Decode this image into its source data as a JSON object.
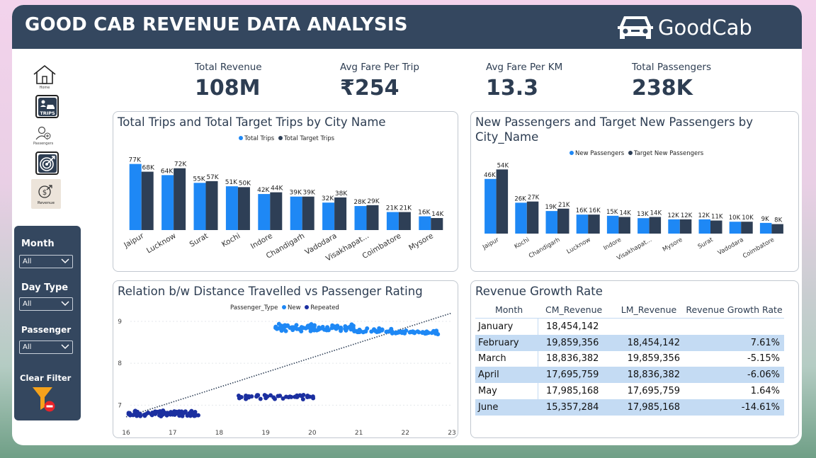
{
  "header": {
    "title": "GOOD CAB REVENUE DATA ANALYSIS",
    "logo_text": "GoodCab"
  },
  "nav": [
    {
      "label": "Home",
      "icon": "home-icon"
    },
    {
      "label": "TRIPS",
      "icon": "trips-icon"
    },
    {
      "label": "Passengers",
      "icon": "passengers-icon"
    },
    {
      "label": "",
      "icon": "target-icon"
    },
    {
      "label": "Revenue",
      "icon": "revenue-icon"
    }
  ],
  "filters": {
    "month": {
      "label": "Month",
      "value": "All"
    },
    "day_type": {
      "label": "Day Type",
      "value": "All"
    },
    "passenger": {
      "label": "Passenger",
      "value": "All"
    },
    "clear_label": "Clear Filter"
  },
  "kpis": [
    {
      "label": "Total Revenue",
      "value": "108M"
    },
    {
      "label": "Avg Fare Per Trip",
      "value": "₹254"
    },
    {
      "label": "Avg Fare Per KM",
      "value": "13.3"
    },
    {
      "label": "Total Passengers",
      "value": "238K"
    }
  ],
  "colors": {
    "primary": "#1e88f5",
    "secondary": "#2e3f56",
    "header": "#34475f",
    "scatter_new": "#1e88f5",
    "scatter_repeated": "#1b2fa0",
    "band": "#c4dbf3"
  },
  "chart_data": [
    {
      "type": "bar",
      "title": "Total Trips and Total Target Trips by City Name",
      "categories": [
        "Jaipur",
        "Lucknow",
        "Surat",
        "Kochi",
        "Indore",
        "Chandigarh",
        "Vadodara",
        "Visakhapat...",
        "Coimbatore",
        "Mysore"
      ],
      "series": [
        {
          "name": "Total Trips",
          "values": [
            77,
            64,
            55,
            51,
            42,
            39,
            32,
            28,
            21,
            16
          ],
          "labels": [
            "77K",
            "64K",
            "55K",
            "51K",
            "42K",
            "39K",
            "32K",
            "28K",
            "21K",
            "16K"
          ]
        },
        {
          "name": "Total Target Trips",
          "values": [
            68,
            72,
            57,
            50,
            44,
            39,
            38,
            29,
            21,
            14
          ],
          "labels": [
            "68K",
            "72K",
            "57K",
            "50K",
            "44K",
            "39K",
            "38K",
            "29K",
            "21K",
            "14K"
          ]
        }
      ],
      "ylim": [
        0,
        80
      ],
      "legend": "top-center"
    },
    {
      "type": "bar",
      "title": "New Passengers and Target New Passengers by City_Name",
      "categories": [
        "Jaipur",
        "Kochi",
        "Chandigarh",
        "Lucknow",
        "Indore",
        "Visakhapat...",
        "Mysore",
        "Surat",
        "Vadodara",
        "Coimbatore"
      ],
      "series": [
        {
          "name": "New Passengers",
          "values": [
            46,
            26,
            19,
            16,
            15,
            13,
            12,
            12,
            10,
            9
          ],
          "labels": [
            "46K",
            "26K",
            "19K",
            "16K",
            "15K",
            "13K",
            "12K",
            "12K",
            "10K",
            "9K"
          ]
        },
        {
          "name": "Target New Passengers",
          "values": [
            54,
            27,
            21,
            16,
            14,
            14,
            12,
            11,
            10,
            8
          ],
          "labels": [
            "54K",
            "27K",
            "21K",
            "16K",
            "14K",
            "14K",
            "12K",
            "11K",
            "10K",
            "8K"
          ]
        }
      ],
      "ylim": [
        0,
        56
      ],
      "legend": "top-center"
    },
    {
      "type": "scatter",
      "title": "Relation b/w Distance Travelled vs Passenger Rating",
      "legend_title": "Passenger_Type",
      "series": [
        {
          "name": "New",
          "clusters": [
            {
              "x_range": [
                19.2,
                20.9
              ],
              "y_center": 8.85,
              "y_spread": 0.06,
              "count": 95
            },
            {
              "x_range": [
                20.9,
                21.7
              ],
              "y_center": 8.78,
              "y_spread": 0.04,
              "count": 30
            },
            {
              "x_range": [
                21.7,
                22.7
              ],
              "y_center": 8.74,
              "y_spread": 0.03,
              "count": 45
            }
          ]
        },
        {
          "name": "Repeated",
          "clusters": [
            {
              "x_range": [
                16.05,
                17.5
              ],
              "y_center": 6.8,
              "y_spread": 0.05,
              "count": 110
            },
            {
              "x_range": [
                17.5,
                17.6
              ],
              "y_center": 6.8,
              "y_spread": 0.04,
              "count": 2
            },
            {
              "x_range": [
                18.4,
                20.05
              ],
              "y_center": 7.2,
              "y_spread": 0.04,
              "count": 45
            }
          ]
        }
      ],
      "trendline": {
        "x": [
          16.0,
          23.0
        ],
        "y": [
          6.72,
          9.2
        ]
      },
      "xticks": [
        16,
        17,
        18,
        19,
        20,
        21,
        22,
        23
      ],
      "yticks": [
        7,
        8,
        9
      ],
      "xlim": [
        16,
        23
      ],
      "ylim": [
        6.6,
        9.05
      ]
    }
  ],
  "revenue_table": {
    "title": "Revenue Growth Rate",
    "columns": [
      "Month",
      "CM_Revenue",
      "LM_Revenue",
      "Revenue Growth Rate"
    ],
    "rows": [
      [
        "January",
        "18,454,142",
        "",
        ""
      ],
      [
        "February",
        "19,859,356",
        "18,454,142",
        "7.61%"
      ],
      [
        "March",
        "18,836,382",
        "19,859,356",
        "-5.15%"
      ],
      [
        "April",
        "17,695,759",
        "18,836,382",
        "-6.06%"
      ],
      [
        "May",
        "17,985,168",
        "17,695,759",
        "1.64%"
      ],
      [
        "June",
        "15,357,284",
        "17,985,168",
        "-14.61%"
      ]
    ]
  }
}
